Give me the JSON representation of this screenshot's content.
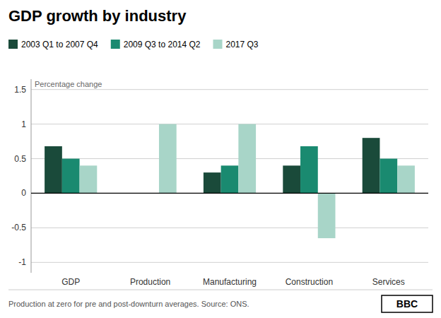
{
  "chart_data": {
    "type": "bar",
    "title": "GDP growth by industry",
    "categories": [
      "GDP",
      "Production",
      "Manufacturing",
      "Construction",
      "Services"
    ],
    "series": [
      {
        "name": "2003 Q1 to 2007 Q4",
        "color": "#1a4a3a",
        "values": [
          0.68,
          0.0,
          0.3,
          0.4,
          0.8
        ]
      },
      {
        "name": "2009 Q3 to 2014 Q2",
        "color": "#1a8a70",
        "values": [
          0.5,
          0.0,
          0.4,
          0.68,
          0.5
        ]
      },
      {
        "name": "2017 Q3",
        "color": "#a8d5c8",
        "values": [
          0.4,
          1.0,
          1.0,
          -0.65,
          0.4
        ]
      }
    ],
    "ylabel": "Percentage change",
    "ylim": [
      -1.15,
      1.65
    ],
    "yticks": [
      -1.0,
      -0.5,
      0.0,
      0.5,
      1.0,
      1.5
    ],
    "grid": true,
    "legend": "top-left",
    "annotations": [
      "Production at zero for pre and post-downturn averages. Source: ONS.",
      "BBC"
    ]
  }
}
